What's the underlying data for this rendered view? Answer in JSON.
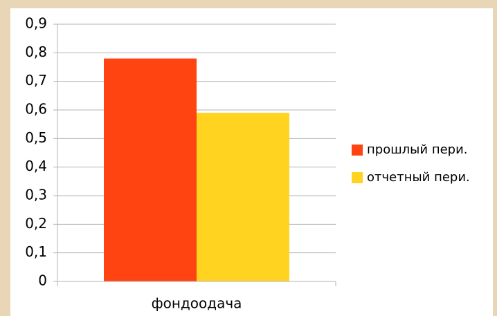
{
  "chart_data": {
    "type": "bar",
    "categories": [
      "фондоодача"
    ],
    "series": [
      {
        "name": "прошлый пери.",
        "color": "#ff4411",
        "values": [
          0.78
        ]
      },
      {
        "name": "отчетный пери.",
        "color": "#ffd320",
        "values": [
          0.59
        ]
      }
    ],
    "ylim": [
      0,
      0.9
    ],
    "yticks": [
      0,
      {
        "value": 0.1,
        "label": "0,1"
      },
      {
        "value": 0.2,
        "label": "0,2"
      },
      {
        "value": 0.3,
        "label": "0,3"
      },
      {
        "value": 0.4,
        "label": "0,4"
      },
      {
        "value": 0.5,
        "label": "0,5"
      },
      {
        "value": 0.6,
        "label": "0,6"
      },
      {
        "value": 0.7,
        "label": "0,7"
      },
      {
        "value": 0.8,
        "label": "0,8"
      },
      {
        "value": 0.9,
        "label": "0,9"
      }
    ],
    "grid": true,
    "legend": "right"
  }
}
